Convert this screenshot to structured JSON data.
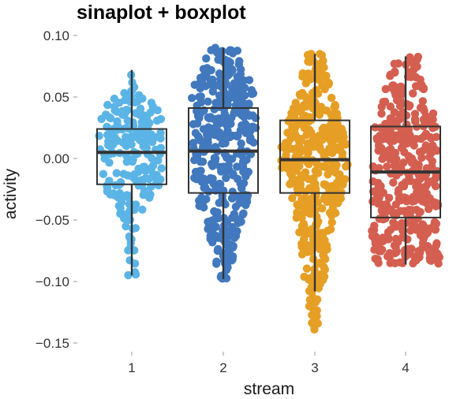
{
  "chart_data": {
    "type": "sinaplot",
    "title": "sinaplot + boxplot",
    "xlabel": "stream",
    "ylabel": "activity",
    "categories": [
      "1",
      "2",
      "3",
      "4"
    ],
    "ylim": [
      -0.16,
      0.105
    ],
    "yticks": [
      0.1,
      0.05,
      0.0,
      -0.05,
      -0.1,
      -0.15
    ],
    "ytick_labels": [
      "0.10",
      "0.05",
      "0.00",
      "−0.05",
      "−0.10",
      "−0.15"
    ],
    "grid": false,
    "legend": "none",
    "series": [
      {
        "category": "1",
        "color": "#5BB4E6",
        "n_points": 210,
        "box": {
          "min": -0.095,
          "q1": -0.021,
          "median": 0.005,
          "q3": 0.024,
          "max": 0.072
        },
        "density": [
          [
            -0.095,
            0.12
          ],
          [
            -0.08,
            0.15
          ],
          [
            -0.065,
            0.12
          ],
          [
            -0.05,
            0.25
          ],
          [
            -0.035,
            0.6
          ],
          [
            -0.02,
            0.85
          ],
          [
            0.0,
            0.95
          ],
          [
            0.015,
            1.0
          ],
          [
            0.03,
            0.95
          ],
          [
            0.045,
            0.7
          ],
          [
            0.055,
            0.2
          ],
          [
            0.072,
            0.08
          ]
        ]
      },
      {
        "category": "2",
        "color": "#4178BE",
        "n_points": 400,
        "box": {
          "min": -0.098,
          "q1": -0.028,
          "median": 0.006,
          "q3": 0.041,
          "max": 0.09
        },
        "density": [
          [
            -0.098,
            0.2
          ],
          [
            -0.08,
            0.3
          ],
          [
            -0.06,
            0.45
          ],
          [
            -0.04,
            0.7
          ],
          [
            -0.02,
            0.85
          ],
          [
            0.0,
            0.9
          ],
          [
            0.02,
            0.95
          ],
          [
            0.04,
            1.0
          ],
          [
            0.06,
            0.85
          ],
          [
            0.075,
            0.6
          ],
          [
            0.09,
            0.4
          ]
        ]
      },
      {
        "category": "3",
        "color": "#E69F25",
        "n_points": 400,
        "box": {
          "min": -0.108,
          "q1": -0.028,
          "median": -0.001,
          "q3": 0.031,
          "max": 0.085
        },
        "density": [
          [
            -0.145,
            0.08
          ],
          [
            -0.135,
            0.12
          ],
          [
            -0.12,
            0.2
          ],
          [
            -0.1,
            0.3
          ],
          [
            -0.085,
            0.35
          ],
          [
            -0.07,
            0.4
          ],
          [
            -0.05,
            0.55
          ],
          [
            -0.03,
            0.8
          ],
          [
            -0.01,
            1.0
          ],
          [
            0.01,
            1.0
          ],
          [
            0.03,
            0.8
          ],
          [
            0.05,
            0.55
          ],
          [
            0.07,
            0.35
          ],
          [
            0.085,
            0.2
          ]
        ]
      },
      {
        "category": "4",
        "color": "#D45F50",
        "n_points": 400,
        "box": {
          "min": -0.086,
          "q1": -0.048,
          "median": -0.011,
          "q3": 0.026,
          "max": 0.083
        },
        "density": [
          [
            -0.086,
            0.95
          ],
          [
            -0.07,
            0.95
          ],
          [
            -0.05,
            0.95
          ],
          [
            -0.03,
            0.92
          ],
          [
            -0.01,
            0.92
          ],
          [
            0.01,
            0.9
          ],
          [
            0.03,
            0.85
          ],
          [
            0.05,
            0.65
          ],
          [
            0.065,
            0.45
          ],
          [
            0.083,
            0.35
          ]
        ]
      }
    ]
  }
}
